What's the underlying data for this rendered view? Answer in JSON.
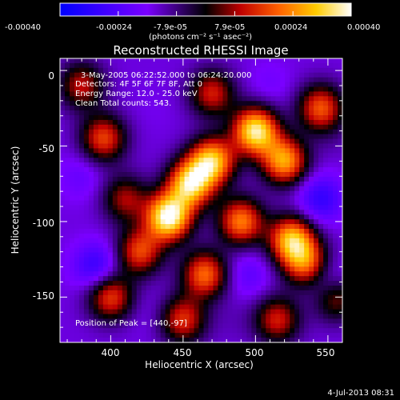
{
  "chart_data": {
    "type": "heatmap",
    "title": "Reconstructed RHESSI Image",
    "xlabel": "Heliocentric X (arcsec)",
    "ylabel": "Heliocentric Y (arcsec)",
    "xlim": [
      365,
      560
    ],
    "ylim": [
      -180,
      8
    ],
    "x_ticks": [
      400,
      450,
      500,
      550
    ],
    "y_ticks": [
      0,
      -50,
      -100,
      -150
    ],
    "colorbar": {
      "range": [
        -0.0004,
        0.0004
      ],
      "tick_labels": [
        "-0.00040",
        "-0.00024",
        "-7.9e-05",
        "7.9e-05",
        "0.00024",
        "0.00040"
      ],
      "unit_label": "(photons cm⁻² s⁻¹ asec⁻²)",
      "colors": [
        "#0000ff",
        "#7a00ff",
        "#000000",
        "#c00000",
        "#ff6000",
        "#ffcc00",
        "#ffffff"
      ]
    },
    "annotations": [
      "3-May-2005 06:22:52.000 to 06:24:20.000",
      "Detectors: 4F 5F 6F 7F 8F, Att 0",
      "Energy Range: 12.0 - 25.0 keV",
      "Clean    Total counts: 543."
    ],
    "peak_label": "Position of Peak = [440,-97]",
    "peak": [
      440,
      -97
    ],
    "blobs": [
      {
        "x": 440,
        "y": -97,
        "v": 0.0004
      },
      {
        "x": 455,
        "y": -75,
        "v": 0.00032
      },
      {
        "x": 470,
        "y": -60,
        "v": 0.0003
      },
      {
        "x": 500,
        "y": -40,
        "v": 0.00036
      },
      {
        "x": 520,
        "y": -60,
        "v": 0.00026
      },
      {
        "x": 490,
        "y": -100,
        "v": 0.00022
      },
      {
        "x": 525,
        "y": -112,
        "v": 0.00028
      },
      {
        "x": 535,
        "y": -128,
        "v": 0.00018
      },
      {
        "x": 420,
        "y": -120,
        "v": 0.00016
      },
      {
        "x": 465,
        "y": -135,
        "v": 0.0002
      },
      {
        "x": 400,
        "y": -150,
        "v": 0.00016
      },
      {
        "x": 450,
        "y": -165,
        "v": 0.00014
      },
      {
        "x": 515,
        "y": -165,
        "v": 0.00012
      },
      {
        "x": 545,
        "y": -25,
        "v": 0.00018
      },
      {
        "x": 395,
        "y": -45,
        "v": 0.00016
      },
      {
        "x": 380,
        "y": -10,
        "v": 0.0001
      },
      {
        "x": 470,
        "y": -15,
        "v": 0.00012
      },
      {
        "x": 410,
        "y": -85,
        "v": 8e-05
      },
      {
        "x": 555,
        "y": -150,
        "v": 0.0001
      },
      {
        "x": 380,
        "y": -70,
        "v": -0.0002
      },
      {
        "x": 390,
        "y": -130,
        "v": -0.0003
      },
      {
        "x": 545,
        "y": -85,
        "v": -0.0003
      },
      {
        "x": 550,
        "y": -140,
        "v": -0.00028
      },
      {
        "x": 510,
        "y": -10,
        "v": -0.00018
      },
      {
        "x": 430,
        "y": -25,
        "v": -0.00015
      },
      {
        "x": 495,
        "y": -135,
        "v": -0.00022
      },
      {
        "x": 425,
        "y": -160,
        "v": -0.00016
      },
      {
        "x": 485,
        "y": -165,
        "v": -0.00012
      },
      {
        "x": 440,
        "y": -135,
        "v": -0.00014
      },
      {
        "x": 555,
        "y": -45,
        "v": -0.00012
      }
    ]
  },
  "footer": {
    "timestamp": "4-Jul-2013 08:31"
  }
}
